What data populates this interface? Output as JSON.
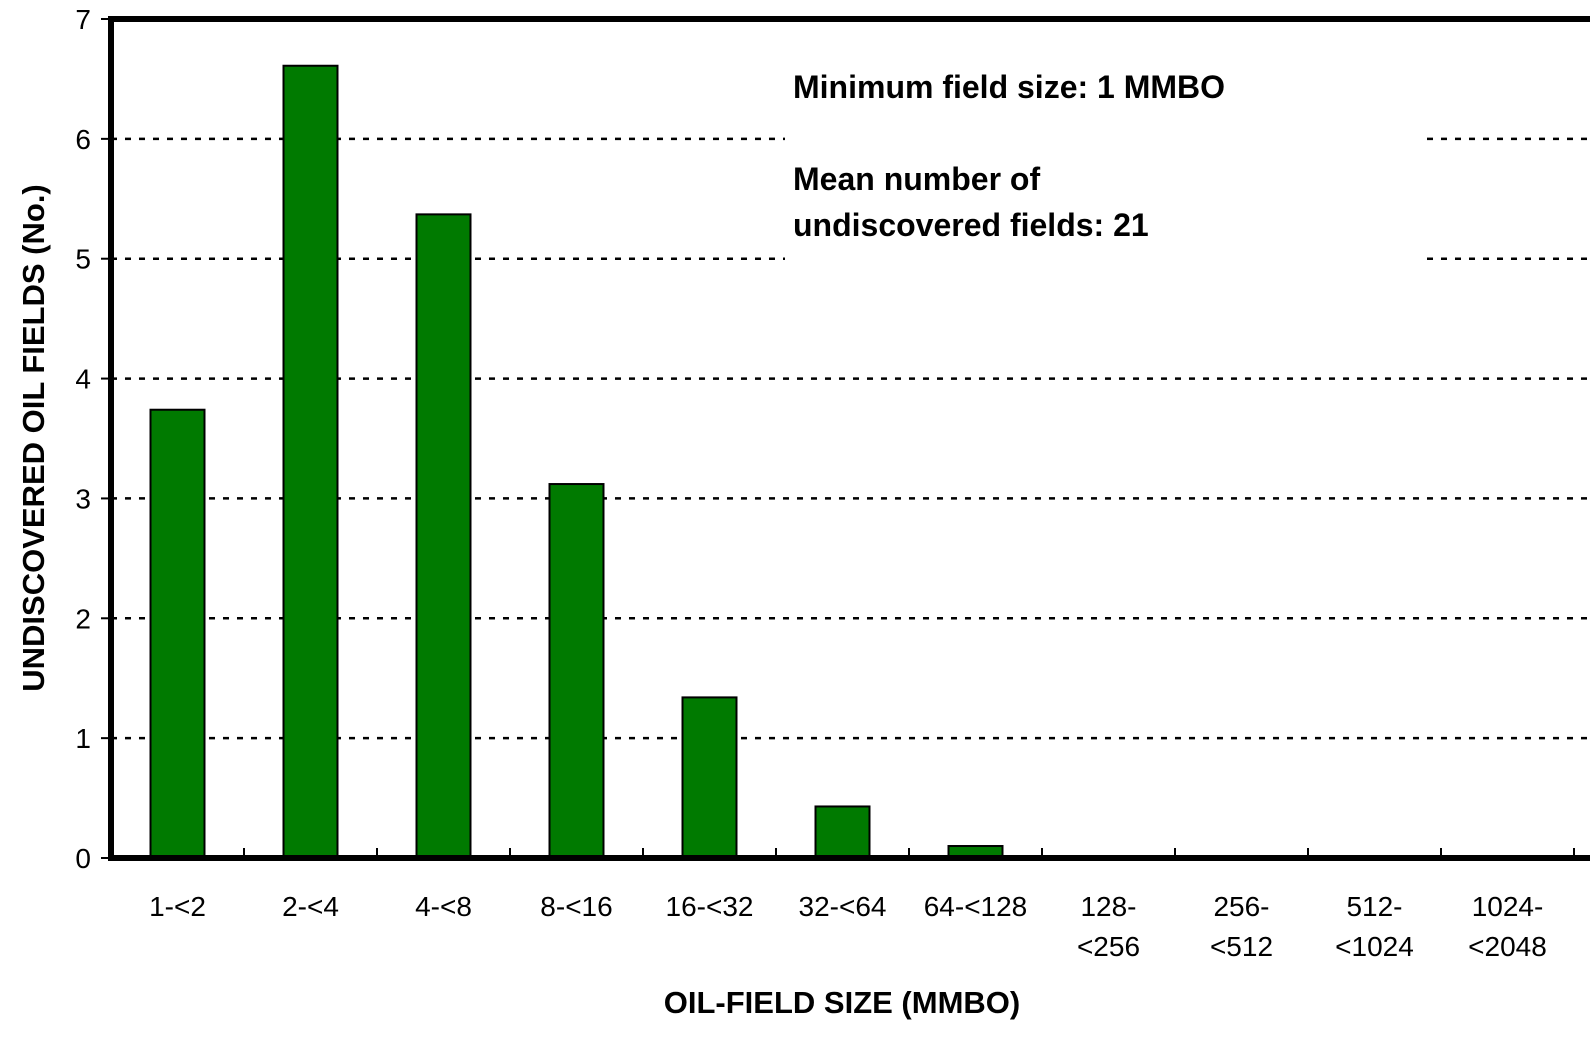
{
  "chart_data": {
    "type": "bar",
    "title": "",
    "xlabel": "OIL-FIELD SIZE (MMBO)",
    "ylabel": "UNDISCOVERED OIL FIELDS (No.)",
    "ylim": [
      0,
      7
    ],
    "yticks": [
      0,
      1,
      2,
      3,
      4,
      5,
      6,
      7
    ],
    "grid": "horizontal dotted",
    "categories": [
      [
        "1-<2"
      ],
      [
        "2-<4"
      ],
      [
        "4-<8"
      ],
      [
        "8-<16"
      ],
      [
        "16-<32"
      ],
      [
        "32-<64"
      ],
      [
        "64-<128"
      ],
      [
        "128-",
        "<256"
      ],
      [
        "256-",
        "<512"
      ],
      [
        "512-",
        "<1024"
      ],
      [
        "1024-",
        "<2048"
      ]
    ],
    "values": [
      3.74,
      6.61,
      5.37,
      3.12,
      1.34,
      0.43,
      0.1,
      0,
      0,
      0,
      0
    ],
    "bar_color": "#007a00",
    "annotations": [
      "Minimum field size: 1 MMBO",
      "Mean number of",
      "undiscovered fields: 21"
    ]
  }
}
